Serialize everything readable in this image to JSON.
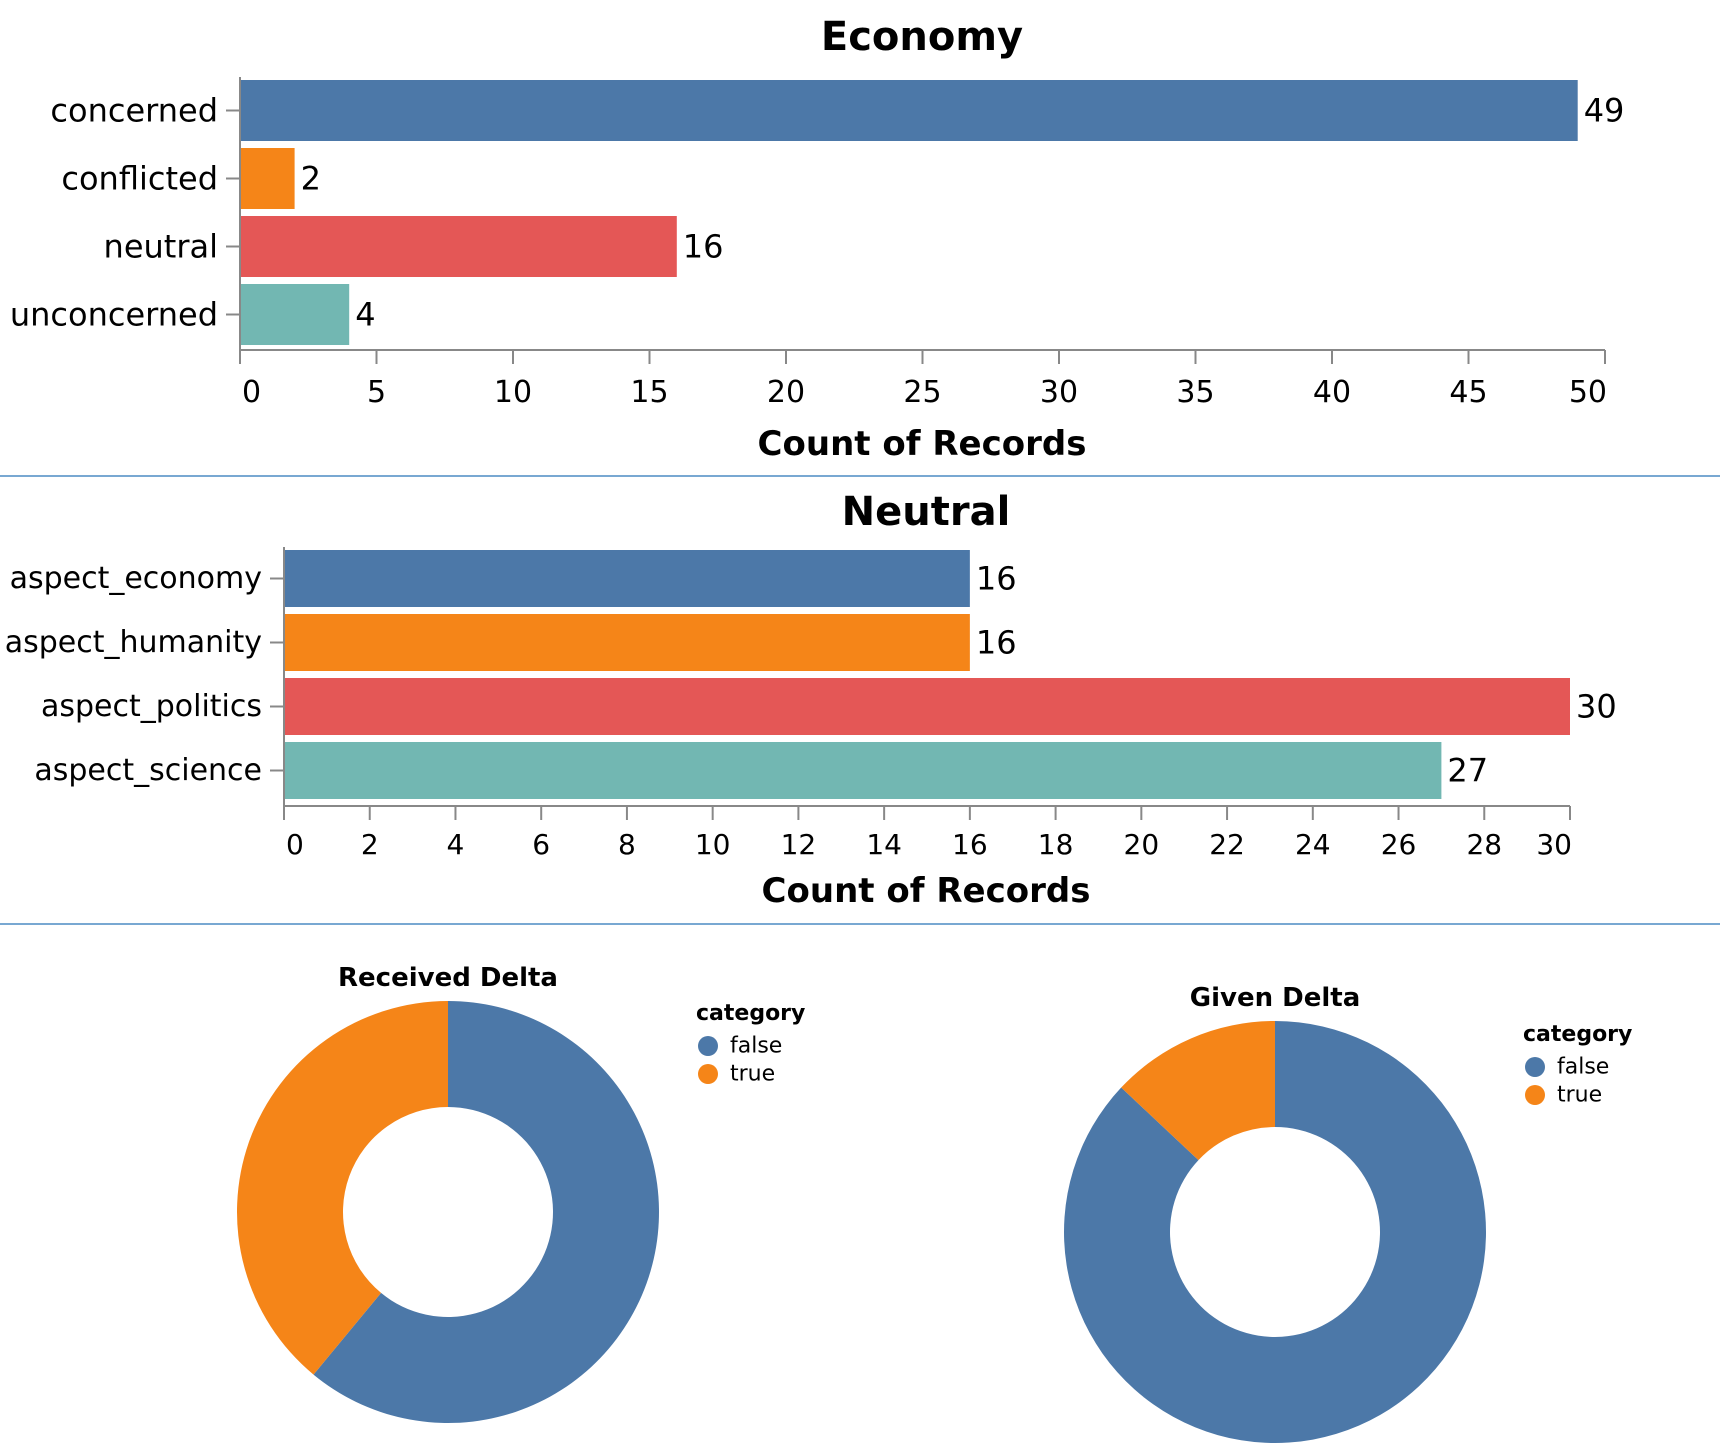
{
  "colors": {
    "c0": "#4c78a8",
    "c1": "#f58518",
    "c2": "#e45756",
    "c3": "#72b7b2",
    "axis": "#888888",
    "separator": "#4c8cc4"
  },
  "chart_data": [
    {
      "type": "bar",
      "orientation": "horizontal",
      "title": "Economy",
      "xlabel": "Count of Records",
      "ylabel": "",
      "categories": [
        "concerned",
        "conflicted",
        "neutral",
        "unconcerned"
      ],
      "values": [
        49,
        2,
        16,
        4
      ],
      "xlim": [
        0,
        50
      ],
      "xticks": [
        0,
        5,
        10,
        15,
        20,
        25,
        30,
        35,
        40,
        45,
        50
      ],
      "grid": false
    },
    {
      "type": "bar",
      "orientation": "horizontal",
      "title": "Neutral",
      "xlabel": "Count of Records",
      "ylabel": "",
      "categories": [
        "aspect_economy",
        "aspect_humanity",
        "aspect_politics",
        "aspect_science"
      ],
      "values": [
        16,
        16,
        30,
        27
      ],
      "xlim": [
        0,
        30
      ],
      "xticks": [
        0,
        2,
        4,
        6,
        8,
        10,
        12,
        14,
        16,
        18,
        20,
        22,
        24,
        26,
        28,
        30
      ],
      "grid": false
    },
    {
      "type": "pie",
      "donut": true,
      "title": "Received Delta",
      "legend_title": "category",
      "legend_position": "right",
      "categories": [
        "false",
        "true"
      ],
      "values": [
        0.61,
        0.39
      ]
    },
    {
      "type": "pie",
      "donut": true,
      "title": "Given Delta",
      "legend_title": "category",
      "legend_position": "right",
      "categories": [
        "false",
        "true"
      ],
      "values": [
        0.87,
        0.13
      ]
    }
  ]
}
